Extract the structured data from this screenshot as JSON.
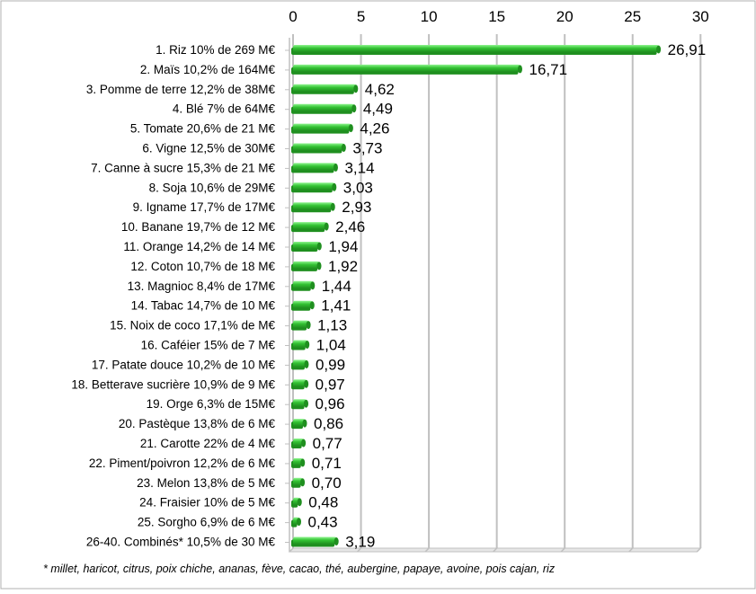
{
  "chart_data": {
    "type": "bar",
    "orientation": "horizontal",
    "categories": [
      "1. Riz 10% de 269 M€",
      "2. Maïs 10,2% de 164M€",
      "3. Pomme de terre 12,2% de 38M€",
      "4. Blé 7% de 64M€",
      "5. Tomate 20,6% de 21 M€",
      "6. Vigne 12,5% de 30M€",
      "7. Canne à sucre 15,3% de 21 M€",
      "8. Soja 10,6% de 29M€",
      "9. Igname 17,7% de 17M€",
      "10. Banane 19,7% de 12 M€",
      "11. Orange 14,2% de 14 M€",
      "12. Coton 10,7% de 18 M€",
      "13. Magnioc 8,4% de 17M€",
      "14. Tabac 14,7% de 10 M€",
      "15. Noix de coco 17,1% de M€",
      "16. Caféier 15% de 7 M€",
      "17. Patate douce 10,2% de 10 M€",
      "18. Betterave sucrière 10,9% de 9 M€",
      "19. Orge 6,3% de 15M€",
      "20. Pastèque 13,8% de 6 M€",
      "21. Carotte 22% de 4 M€",
      "22. Piment/poivron 12,2% de 6 M€",
      "23. Melon 13,8% de 5 M€",
      "24. Fraisier 10% de 5 M€",
      "25. Sorgho 6,9% de 6 M€",
      "26-40. Combinés* 10,5% de 30 M€"
    ],
    "values": [
      26.91,
      16.71,
      4.62,
      4.49,
      4.26,
      3.73,
      3.14,
      3.03,
      2.93,
      2.46,
      1.94,
      1.92,
      1.44,
      1.41,
      1.13,
      1.04,
      0.99,
      0.97,
      0.96,
      0.86,
      0.77,
      0.71,
      0.7,
      0.48,
      0.43,
      3.19
    ],
    "value_labels": [
      "26,91",
      "16,71",
      "4,62",
      "4,49",
      "4,26",
      "3,73",
      "3,14",
      "3,03",
      "2,93",
      "2,46",
      "1,94",
      "1,92",
      "1,44",
      "1,41",
      "1,13",
      "1,04",
      "0,99",
      "0,97",
      "0,96",
      "0,86",
      "0,77",
      "0,71",
      "0,70",
      "0,48",
      "0,43",
      "3,19"
    ],
    "xlim": [
      0,
      30
    ],
    "ticks": [
      0,
      5,
      10,
      15,
      20,
      25,
      30
    ],
    "tick_labels": [
      "0",
      "5",
      "10",
      "15",
      "20",
      "25",
      "30"
    ],
    "axis_position": "top",
    "grid": true,
    "title": "",
    "xlabel": "",
    "ylabel": "",
    "footnote": "* millet, haricot, citrus, poix chiche, ananas, fève, cacao, thé, aubergine, papaye, avoine, pois cajan, riz",
    "colors": {
      "bar_dark": "#1f8f1f",
      "bar_mid": "#33c233",
      "bar_light": "#8ff58f",
      "grid": "#c0c0c0",
      "frame": "#b0b0b0"
    }
  }
}
